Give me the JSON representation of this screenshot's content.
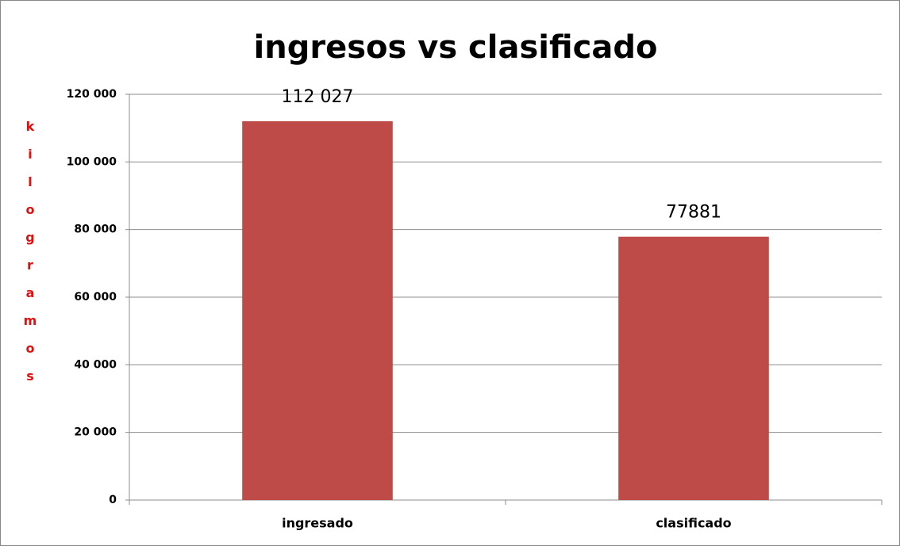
{
  "chart_data": {
    "type": "bar",
    "title": "ingresos vs clasificado",
    "y_label": "kilogramos",
    "categories": [
      "ingresado",
      "clasificado"
    ],
    "values": [
      112027,
      77881
    ],
    "value_labels": [
      "112 027",
      "77881"
    ],
    "color": "#be4b48",
    "ylim": [
      0,
      120000
    ],
    "yticks": [
      0,
      {
        "value": 20000,
        "label": "20 000"
      },
      {
        "value": 40000,
        "label": "40 000"
      },
      {
        "value": 60000,
        "label": "60 000"
      },
      {
        "value": 80000,
        "label": "80 000"
      },
      {
        "value": 100000,
        "label": "100 000"
      },
      {
        "value": 120000,
        "label": "120 000"
      }
    ],
    "grid": true
  }
}
